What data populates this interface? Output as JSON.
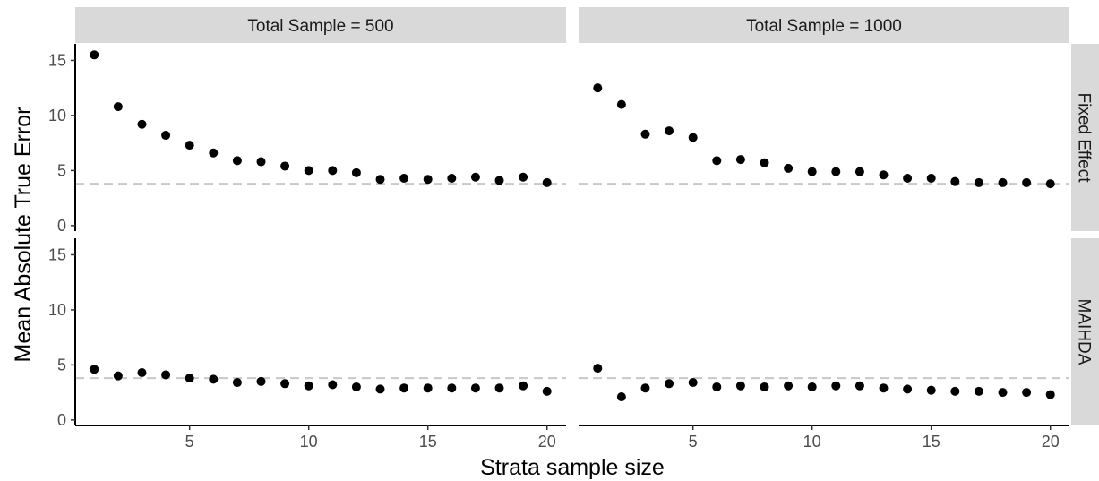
{
  "chart_data": {
    "type": "scatter",
    "xlabel": "Strata sample size",
    "ylabel": "Mean Absolute True Error",
    "xlim": [
      0.2,
      20.8
    ],
    "ylim": [
      -0.5,
      16.5
    ],
    "x_ticks": [
      5,
      10,
      15,
      20
    ],
    "y_ticks": [
      0,
      5,
      10,
      15
    ],
    "grid": false,
    "legend": "none",
    "reference_line": {
      "y": 3.8,
      "style": "dashed",
      "color": "#c8c8c8"
    },
    "columns": [
      "Total Sample = 500",
      "Total Sample = 1000"
    ],
    "rows": [
      "Fixed Effect",
      "MAIHDA"
    ],
    "panels": [
      {
        "column": "Total Sample = 500",
        "row": "Fixed Effect",
        "x": [
          1,
          2,
          3,
          4,
          5,
          6,
          7,
          8,
          9,
          10,
          11,
          12,
          13,
          14,
          15,
          16,
          17,
          18,
          19,
          20
        ],
        "y": [
          15.5,
          10.8,
          9.2,
          8.2,
          7.3,
          6.6,
          5.9,
          5.8,
          5.4,
          5.0,
          5.0,
          4.8,
          4.2,
          4.3,
          4.2,
          4.3,
          4.4,
          4.1,
          4.4,
          3.9
        ]
      },
      {
        "column": "Total Sample = 1000",
        "row": "Fixed Effect",
        "x": [
          1,
          2,
          3,
          4,
          5,
          6,
          7,
          8,
          9,
          10,
          11,
          12,
          13,
          14,
          15,
          16,
          17,
          18,
          19,
          20
        ],
        "y": [
          12.5,
          11.0,
          8.3,
          8.6,
          8.0,
          5.9,
          6.0,
          5.7,
          5.2,
          4.9,
          4.9,
          4.9,
          4.6,
          4.3,
          4.3,
          4.0,
          3.9,
          3.9,
          3.9,
          3.8
        ]
      },
      {
        "column": "Total Sample = 500",
        "row": "MAIHDA",
        "x": [
          1,
          2,
          3,
          4,
          5,
          6,
          7,
          8,
          9,
          10,
          11,
          12,
          13,
          14,
          15,
          16,
          17,
          18,
          19,
          20
        ],
        "y": [
          4.6,
          4.0,
          4.3,
          4.1,
          3.8,
          3.7,
          3.4,
          3.5,
          3.3,
          3.1,
          3.2,
          3.0,
          2.8,
          2.9,
          2.9,
          2.9,
          2.9,
          2.9,
          3.1,
          2.6
        ]
      },
      {
        "column": "Total Sample = 1000",
        "row": "MAIHDA",
        "x": [
          1,
          2,
          3,
          4,
          5,
          6,
          7,
          8,
          9,
          10,
          11,
          12,
          13,
          14,
          15,
          16,
          17,
          18,
          19,
          20
        ],
        "y": [
          4.7,
          2.1,
          2.9,
          3.3,
          3.4,
          3.0,
          3.1,
          3.0,
          3.1,
          3.0,
          3.1,
          3.1,
          2.9,
          2.8,
          2.7,
          2.6,
          2.6,
          2.5,
          2.5,
          2.3
        ]
      }
    ]
  }
}
